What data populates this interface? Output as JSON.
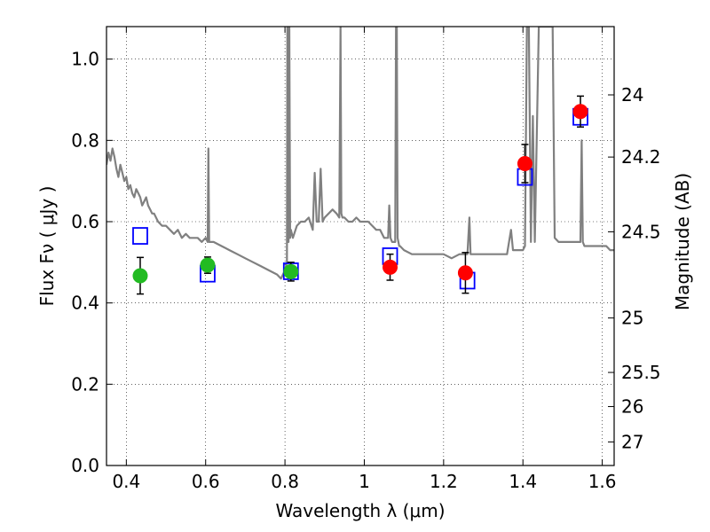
{
  "chart_data": {
    "type": "scatter",
    "xlabel": "Wavelength  λ (μm)",
    "ylabel": "Flux  Fν  ( μJy )",
    "ylabel_right": "Magnitude (AB)",
    "xlim": [
      0.35,
      1.63
    ],
    "ylim": [
      0.0,
      1.08
    ],
    "grid": true,
    "x_ticks": [
      0.4,
      0.6,
      0.8,
      1.0,
      1.2,
      1.4,
      1.6
    ],
    "x_tick_labels": [
      "0.4",
      "0.6",
      "0.8",
      "1",
      "1.2",
      "1.4",
      "1.6"
    ],
    "y_ticks": [
      0.0,
      0.2,
      0.4,
      0.6,
      0.8,
      1.0
    ],
    "y_tick_labels": [
      "0.0",
      "0.2",
      "0.4",
      "0.6",
      "0.8",
      "1.0"
    ],
    "right_ticks": [
      {
        "label": "24",
        "flux": 0.912
      },
      {
        "label": "24.2",
        "flux": 0.759
      },
      {
        "label": "24.5",
        "flux": 0.575
      },
      {
        "label": "25",
        "flux": 0.363
      },
      {
        "label": "25.5",
        "flux": 0.229
      },
      {
        "label": "26",
        "flux": 0.145
      },
      {
        "label": "27",
        "flux": 0.058
      }
    ],
    "series": [
      {
        "color": "#808080",
        "kind": "line",
        "x": [
          0.35,
          0.355,
          0.36,
          0.365,
          0.37,
          0.375,
          0.38,
          0.385,
          0.39,
          0.395,
          0.4,
          0.405,
          0.41,
          0.415,
          0.42,
          0.425,
          0.43,
          0.435,
          0.44,
          0.445,
          0.45,
          0.455,
          0.46,
          0.465,
          0.47,
          0.48,
          0.49,
          0.5,
          0.51,
          0.52,
          0.53,
          0.54,
          0.55,
          0.56,
          0.57,
          0.58,
          0.59,
          0.6,
          0.605,
          0.607,
          0.609,
          0.611,
          0.62,
          0.64,
          0.66,
          0.68,
          0.7,
          0.72,
          0.74,
          0.76,
          0.78,
          0.79,
          0.8,
          0.805,
          0.806,
          0.808,
          0.809,
          0.81,
          0.811,
          0.813,
          0.815,
          0.82,
          0.83,
          0.84,
          0.85,
          0.86,
          0.87,
          0.875,
          0.88,
          0.885,
          0.89,
          0.895,
          0.9,
          0.91,
          0.92,
          0.93,
          0.937,
          0.94,
          0.942,
          0.945,
          0.95,
          0.96,
          0.97,
          0.98,
          0.99,
          1.0,
          1.01,
          1.02,
          1.03,
          1.04,
          1.05,
          1.06,
          1.063,
          1.066,
          1.07,
          1.078,
          1.08,
          1.082,
          1.084,
          1.088,
          1.09,
          1.1,
          1.12,
          1.14,
          1.16,
          1.18,
          1.2,
          1.22,
          1.24,
          1.26,
          1.265,
          1.268,
          1.272,
          1.28,
          1.3,
          1.32,
          1.34,
          1.36,
          1.37,
          1.375,
          1.38,
          1.39,
          1.4,
          1.405,
          1.41,
          1.415,
          1.42,
          1.425,
          1.43,
          1.44,
          1.45,
          1.46,
          1.47,
          1.475,
          1.48,
          1.49,
          1.5,
          1.51,
          1.52,
          1.53,
          1.54,
          1.545,
          1.548,
          1.551,
          1.555,
          1.56,
          1.57,
          1.58,
          1.59,
          1.6,
          1.61,
          1.62,
          1.63
        ],
        "y": [
          0.74,
          0.77,
          0.75,
          0.78,
          0.76,
          0.73,
          0.71,
          0.74,
          0.72,
          0.7,
          0.71,
          0.68,
          0.69,
          0.67,
          0.66,
          0.68,
          0.67,
          0.66,
          0.64,
          0.65,
          0.66,
          0.64,
          0.63,
          0.62,
          0.62,
          0.6,
          0.59,
          0.59,
          0.58,
          0.57,
          0.58,
          0.56,
          0.57,
          0.56,
          0.56,
          0.56,
          0.55,
          0.56,
          0.55,
          0.78,
          0.55,
          0.55,
          0.55,
          0.54,
          0.53,
          0.52,
          0.51,
          0.5,
          0.49,
          0.48,
          0.47,
          0.46,
          0.48,
          0.5,
          1.08,
          1.08,
          0.55,
          1.08,
          1.08,
          0.56,
          0.58,
          0.56,
          0.59,
          0.6,
          0.6,
          0.61,
          0.58,
          0.72,
          0.6,
          0.6,
          0.73,
          0.6,
          0.61,
          0.62,
          0.63,
          0.62,
          0.61,
          1.08,
          0.62,
          0.61,
          0.61,
          0.6,
          0.6,
          0.61,
          0.6,
          0.6,
          0.6,
          0.59,
          0.58,
          0.58,
          0.56,
          0.56,
          0.64,
          0.56,
          0.55,
          0.55,
          1.08,
          1.08,
          0.56,
          0.54,
          0.54,
          0.53,
          0.52,
          0.52,
          0.52,
          0.52,
          0.52,
          0.51,
          0.52,
          0.52,
          0.61,
          0.52,
          0.52,
          0.52,
          0.52,
          0.52,
          0.52,
          0.52,
          0.58,
          0.53,
          0.53,
          0.53,
          0.53,
          0.54,
          1.08,
          1.08,
          0.55,
          0.86,
          0.55,
          1.08,
          1.08,
          1.08,
          1.08,
          1.08,
          0.56,
          0.55,
          0.55,
          0.55,
          0.55,
          0.55,
          0.55,
          0.55,
          0.8,
          0.55,
          0.54,
          0.54,
          0.54,
          0.54,
          0.54,
          0.54,
          0.54,
          0.53,
          0.53
        ]
      },
      {
        "color": "#0000ff",
        "kind": "open-square",
        "x": [
          0.435,
          0.605,
          0.815,
          1.065,
          1.26,
          1.405,
          1.545
        ],
        "y": [
          0.565,
          0.472,
          0.478,
          0.515,
          0.455,
          0.71,
          0.858
        ]
      },
      {
        "color": "#22bb22",
        "kind": "filled-circle",
        "x": [
          0.435,
          0.605,
          0.815
        ],
        "y": [
          0.467,
          0.493,
          0.477
        ],
        "err": [
          0.045,
          0.02,
          0.023
        ]
      },
      {
        "color": "#ff0000",
        "kind": "filled-circle",
        "x": [
          1.065,
          1.255,
          1.405,
          1.545
        ],
        "y": [
          0.488,
          0.474,
          0.743,
          0.871
        ],
        "err": [
          0.032,
          0.05,
          0.047,
          0.038
        ]
      }
    ]
  }
}
